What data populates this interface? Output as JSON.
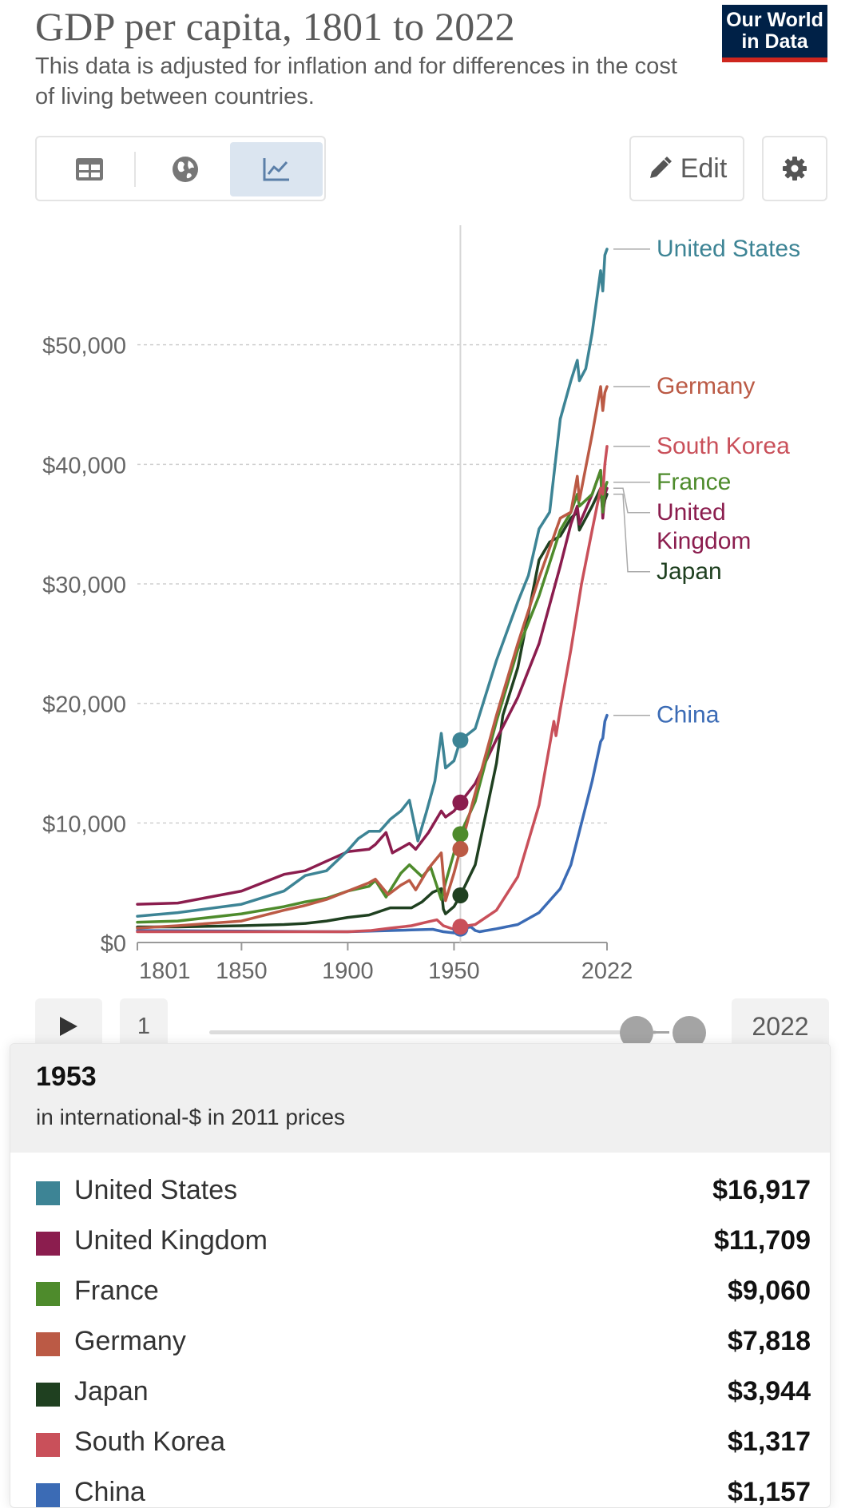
{
  "header": {
    "title": "GDP per capita, 1801 to 2022",
    "subtitle": "This data is adjusted for inflation and for differences in the cost of living between countries.",
    "logo_line1": "Our World",
    "logo_line2": "in Data",
    "edit_label": "Edit"
  },
  "controls": {
    "start_value": "1",
    "end_value": "2022"
  },
  "tooltip": {
    "year": "1953",
    "unit": "in international-$ in 2011 prices",
    "rows": [
      {
        "name": "United States",
        "value": "$16,917",
        "color": "#3d8495"
      },
      {
        "name": "United Kingdom",
        "value": "$11,709",
        "color": "#8b1d4e"
      },
      {
        "name": "France",
        "value": "$9,060",
        "color": "#4e8b2c"
      },
      {
        "name": "Germany",
        "value": "$7,818",
        "color": "#bb5a45"
      },
      {
        "name": "Japan",
        "value": "$3,944",
        "color": "#1f4020"
      },
      {
        "name": "South Korea",
        "value": "$1,317",
        "color": "#c9505a"
      },
      {
        "name": "China",
        "value": "$1,157",
        "color": "#3b6bb5"
      }
    ]
  },
  "chart_data": {
    "type": "line",
    "title": "GDP per capita, 1801 to 2022",
    "xlabel": "",
    "ylabel": "",
    "xlim": [
      1801,
      2022
    ],
    "ylim": [
      0,
      60000
    ],
    "x_ticks": [
      {
        "value": 1801,
        "label": "1801"
      },
      {
        "value": 1850,
        "label": "1850"
      },
      {
        "value": 1900,
        "label": "1900"
      },
      {
        "value": 1950,
        "label": "1950"
      },
      {
        "value": 2022,
        "label": "2022"
      }
    ],
    "y_ticks": [
      {
        "value": 0,
        "label": "$0"
      },
      {
        "value": 10000,
        "label": "$10,000"
      },
      {
        "value": 20000,
        "label": "$20,000"
      },
      {
        "value": 30000,
        "label": "$30,000"
      },
      {
        "value": 40000,
        "label": "$40,000"
      },
      {
        "value": 50000,
        "label": "$50,000"
      }
    ],
    "highlight_year": 1953,
    "series": [
      {
        "name": "United States",
        "color": "#3d8495",
        "label": "United States",
        "label_value": 58000,
        "x": [
          1801,
          1820,
          1850,
          1870,
          1880,
          1890,
          1900,
          1905,
          1910,
          1915,
          1920,
          1925,
          1929,
          1933,
          1937,
          1941,
          1944,
          1946,
          1950,
          1953,
          1960,
          1970,
          1980,
          1985,
          1990,
          1995,
          2000,
          2005,
          2008,
          2009,
          2012,
          2015,
          2019,
          2020,
          2021,
          2022
        ],
        "y": [
          2200,
          2500,
          3200,
          4300,
          5600,
          6000,
          7700,
          8700,
          9300,
          9300,
          10300,
          11000,
          11900,
          8500,
          10900,
          13500,
          17500,
          14600,
          15200,
          16917,
          17900,
          23600,
          28500,
          30700,
          34600,
          36000,
          43800,
          47000,
          48700,
          47000,
          48000,
          51000,
          56200,
          54500,
          57500,
          58000
        ]
      },
      {
        "name": "Germany",
        "color": "#bb5a45",
        "label": "Germany",
        "label_value": 46500,
        "x": [
          1801,
          1820,
          1850,
          1870,
          1880,
          1890,
          1900,
          1910,
          1913,
          1919,
          1925,
          1929,
          1932,
          1938,
          1944,
          1946,
          1950,
          1953,
          1955,
          1960,
          1970,
          1980,
          1990,
          2000,
          2005,
          2008,
          2009,
          2015,
          2019,
          2020,
          2021,
          2022
        ],
        "y": [
          1200,
          1400,
          1800,
          2700,
          3100,
          3600,
          4300,
          5000,
          5300,
          4000,
          4800,
          5200,
          4400,
          6200,
          7500,
          3500,
          5800,
          7818,
          9200,
          12500,
          19000,
          25000,
          30500,
          35500,
          36000,
          39000,
          37000,
          42500,
          46500,
          44500,
          46000,
          46500
        ]
      },
      {
        "name": "South Korea",
        "color": "#c9505a",
        "label": "South Korea",
        "label_value": 41500,
        "x": [
          1801,
          1850,
          1900,
          1911,
          1920,
          1930,
          1937,
          1942,
          1945,
          1950,
          1953,
          1960,
          1970,
          1980,
          1990,
          1997,
          1998,
          2000,
          2005,
          2010,
          2015,
          2019,
          2020,
          2021,
          2022
        ],
        "y": [
          900,
          900,
          900,
          1000,
          1200,
          1400,
          1700,
          1900,
          1400,
          1100,
          1317,
          1500,
          2700,
          5500,
          11500,
          18500,
          17300,
          19500,
          24500,
          30000,
          34500,
          38000,
          37500,
          40000,
          41500
        ]
      },
      {
        "name": "France",
        "color": "#4e8b2c",
        "label": "France",
        "label_value": 38500,
        "x": [
          1801,
          1820,
          1850,
          1870,
          1880,
          1890,
          1900,
          1910,
          1913,
          1918,
          1925,
          1929,
          1935,
          1939,
          1944,
          1946,
          1950,
          1953,
          1960,
          1970,
          1980,
          1990,
          2000,
          2005,
          2008,
          2009,
          2015,
          2019,
          2020,
          2021,
          2022
        ],
        "y": [
          1700,
          1800,
          2400,
          3000,
          3400,
          3700,
          4300,
          4700,
          5200,
          3800,
          5800,
          6500,
          5500,
          6300,
          3600,
          5000,
          7500,
          9060,
          11800,
          18500,
          24500,
          29000,
          34500,
          36000,
          37500,
          36500,
          37500,
          39500,
          36000,
          38000,
          38500
        ]
      },
      {
        "name": "United Kingdom",
        "color": "#8b1d4e",
        "label": "United Kingdom",
        "label_value": 38000,
        "x": [
          1801,
          1820,
          1850,
          1870,
          1880,
          1890,
          1900,
          1910,
          1913,
          1918,
          1921,
          1929,
          1932,
          1938,
          1944,
          1946,
          1950,
          1953,
          1960,
          1970,
          1980,
          1990,
          2000,
          2005,
          2008,
          2009,
          2015,
          2019,
          2020,
          2021,
          2022
        ],
        "y": [
          3200,
          3300,
          4300,
          5700,
          6000,
          6800,
          7600,
          7800,
          8200,
          9200,
          7500,
          8300,
          7800,
          9200,
          11000,
          10500,
          11000,
          11709,
          13300,
          17000,
          20500,
          25000,
          31500,
          35000,
          36500,
          35000,
          37500,
          39500,
          35500,
          37500,
          38000
        ]
      },
      {
        "name": "Japan",
        "color": "#1f4020",
        "label": "Japan",
        "label_value": 37500,
        "x": [
          1801,
          1820,
          1850,
          1870,
          1880,
          1890,
          1900,
          1910,
          1920,
          1930,
          1935,
          1940,
          1944,
          1945,
          1946,
          1950,
          1953,
          1960,
          1970,
          1973,
          1980,
          1990,
          1995,
          2000,
          2005,
          2008,
          2009,
          2015,
          2019,
          2020,
          2021,
          2022
        ],
        "y": [
          1300,
          1300,
          1400,
          1500,
          1600,
          1800,
          2100,
          2300,
          2900,
          2900,
          3400,
          4200,
          4500,
          2800,
          2400,
          3000,
          3944,
          6500,
          15000,
          19000,
          23000,
          32000,
          33500,
          34000,
          35500,
          36000,
          34500,
          36500,
          38000,
          36000,
          37000,
          37500
        ]
      },
      {
        "name": "China",
        "color": "#3b6bb5",
        "label": "China",
        "label_value": 19000,
        "x": [
          1801,
          1850,
          1900,
          1930,
          1940,
          1945,
          1950,
          1953,
          1958,
          1960,
          1962,
          1970,
          1980,
          1990,
          1995,
          2000,
          2005,
          2010,
          2015,
          2019,
          2020,
          2021,
          2022
        ],
        "y": [
          1000,
          950,
          900,
          1050,
          1100,
          900,
          800,
          1157,
          1300,
          1000,
          900,
          1150,
          1500,
          2500,
          3500,
          4500,
          6500,
          10000,
          13500,
          16800,
          17100,
          18500,
          19000
        ]
      }
    ]
  }
}
